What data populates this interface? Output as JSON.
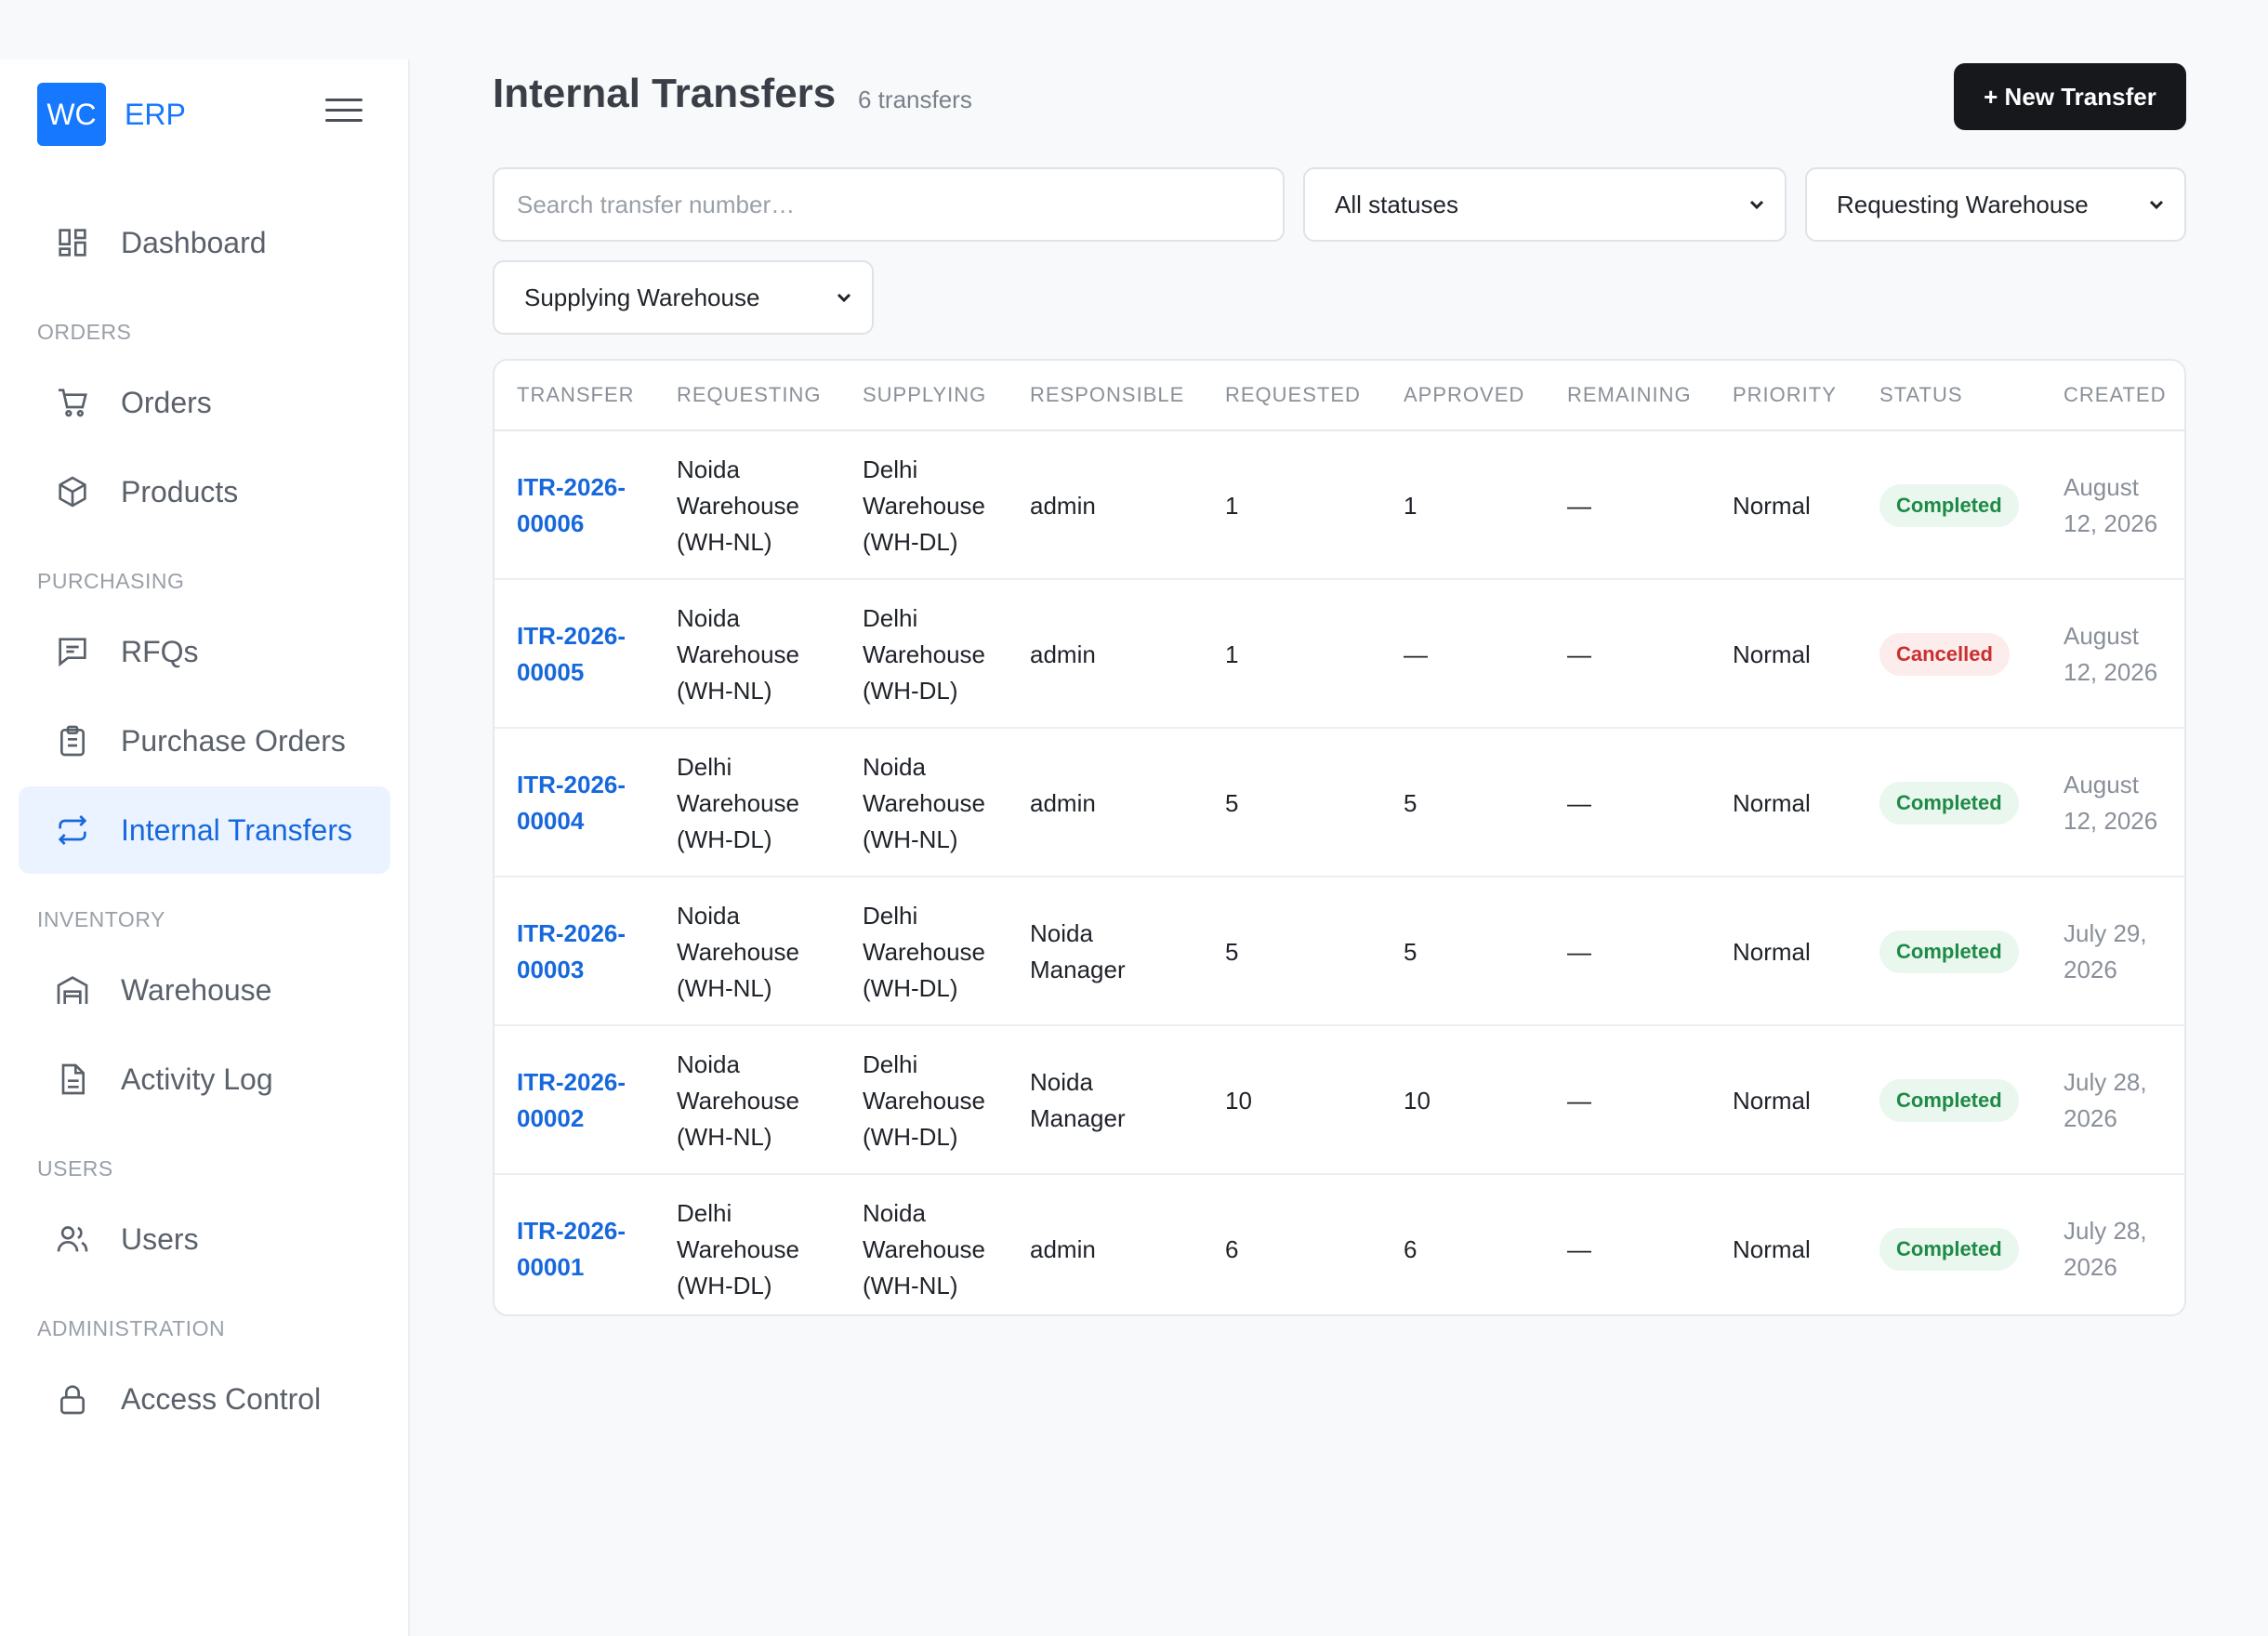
{
  "brand": {
    "logo": "WC",
    "name": "ERP"
  },
  "sidebar": {
    "items": [
      {
        "label": "Dashboard",
        "icon": "dashboard-icon"
      },
      {
        "section": "ORDERS"
      },
      {
        "label": "Orders",
        "icon": "cart-icon"
      },
      {
        "label": "Products",
        "icon": "box-icon"
      },
      {
        "section": "PURCHASING"
      },
      {
        "label": "RFQs",
        "icon": "message-icon"
      },
      {
        "label": "Purchase Orders",
        "icon": "clipboard-icon"
      },
      {
        "label": "Internal Transfers",
        "icon": "transfer-icon",
        "active": true
      },
      {
        "section": "INVENTORY"
      },
      {
        "label": "Warehouse",
        "icon": "warehouse-icon"
      },
      {
        "label": "Activity Log",
        "icon": "document-icon"
      },
      {
        "section": "USERS"
      },
      {
        "label": "Users",
        "icon": "users-icon"
      },
      {
        "section": "ADMINISTRATION"
      },
      {
        "label": "Access Control",
        "icon": "lock-icon"
      }
    ]
  },
  "header": {
    "title": "Internal Transfers",
    "count": "6 transfers",
    "new_button": "+ New Transfer"
  },
  "filters": {
    "search_placeholder": "Search transfer number…",
    "status": "All statuses",
    "requesting": "Requesting Warehouse",
    "supplying": "Supplying Warehouse"
  },
  "table": {
    "columns": [
      "TRANSFER",
      "REQUESTING",
      "SUPPLYING",
      "RESPONSIBLE",
      "REQUESTED",
      "APPROVED",
      "REMAINING",
      "PRIORITY",
      "STATUS",
      "CREATED"
    ],
    "rows": [
      {
        "transfer": [
          "ITR-2026-",
          "00006"
        ],
        "requesting": [
          "Noida",
          "Warehouse",
          "(WH-NL)"
        ],
        "supplying": [
          "Delhi",
          "Warehouse",
          "(WH-DL)"
        ],
        "responsible": [
          "admin"
        ],
        "requested": "1",
        "approved": "1",
        "remaining": "—",
        "priority": "Normal",
        "status": "Completed",
        "created": [
          "August",
          "12, 2026"
        ]
      },
      {
        "transfer": [
          "ITR-2026-",
          "00005"
        ],
        "requesting": [
          "Noida",
          "Warehouse",
          "(WH-NL)"
        ],
        "supplying": [
          "Delhi",
          "Warehouse",
          "(WH-DL)"
        ],
        "responsible": [
          "admin"
        ],
        "requested": "1",
        "approved": "—",
        "remaining": "—",
        "priority": "Normal",
        "status": "Cancelled",
        "created": [
          "August",
          "12, 2026"
        ]
      },
      {
        "transfer": [
          "ITR-2026-",
          "00004"
        ],
        "requesting": [
          "Delhi",
          "Warehouse",
          "(WH-DL)"
        ],
        "supplying": [
          "Noida",
          "Warehouse",
          "(WH-NL)"
        ],
        "responsible": [
          "admin"
        ],
        "requested": "5",
        "approved": "5",
        "remaining": "—",
        "priority": "Normal",
        "status": "Completed",
        "created": [
          "August",
          "12, 2026"
        ]
      },
      {
        "transfer": [
          "ITR-2026-",
          "00003"
        ],
        "requesting": [
          "Noida",
          "Warehouse",
          "(WH-NL)"
        ],
        "supplying": [
          "Delhi",
          "Warehouse",
          "(WH-DL)"
        ],
        "responsible": [
          "Noida",
          "Manager"
        ],
        "requested": "5",
        "approved": "5",
        "remaining": "—",
        "priority": "Normal",
        "status": "Completed",
        "created": [
          "July 29,",
          "2026"
        ]
      },
      {
        "transfer": [
          "ITR-2026-",
          "00002"
        ],
        "requesting": [
          "Noida",
          "Warehouse",
          "(WH-NL)"
        ],
        "supplying": [
          "Delhi",
          "Warehouse",
          "(WH-DL)"
        ],
        "responsible": [
          "Noida",
          "Manager"
        ],
        "requested": "10",
        "approved": "10",
        "remaining": "—",
        "priority": "Normal",
        "status": "Completed",
        "created": [
          "July 28,",
          "2026"
        ]
      },
      {
        "transfer": [
          "ITR-2026-",
          "00001"
        ],
        "requesting": [
          "Delhi",
          "Warehouse",
          "(WH-DL)"
        ],
        "supplying": [
          "Noida",
          "Warehouse",
          "(WH-NL)"
        ],
        "responsible": [
          "admin"
        ],
        "requested": "6",
        "approved": "6",
        "remaining": "—",
        "priority": "Normal",
        "status": "Completed",
        "created": [
          "July 28,",
          "2026"
        ]
      }
    ]
  }
}
